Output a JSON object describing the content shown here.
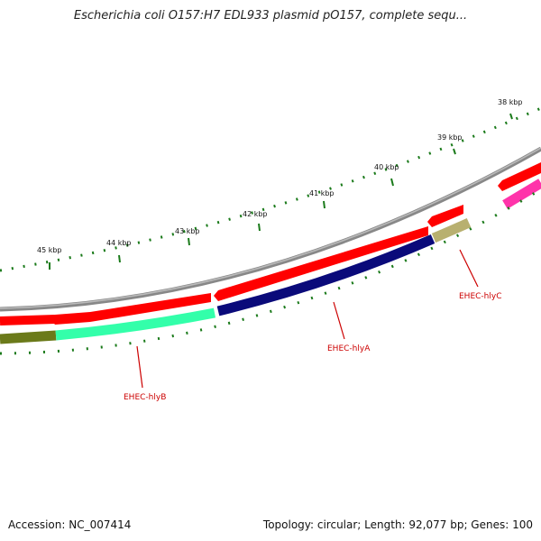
{
  "title": "Escherichia coli O157:H7 EDL933 plasmid pO157, complete sequ...",
  "footer": {
    "accession": "Accession: NC_007414",
    "summary": "Topology: circular; Length: 92,077 bp; Genes: 100"
  },
  "kbp_labels": [
    "38 kbp",
    "39 kbp",
    "40 kbp",
    "41 kbp",
    "42 kbp",
    "43 kbp",
    "44 kbp",
    "45 kbp"
  ],
  "genes": [
    {
      "name": "EHEC-hlyC",
      "color": "#b8b070"
    },
    {
      "name": "EHEC-hlyA",
      "color": "#0a0a7a"
    },
    {
      "name": "EHEC-hlyB",
      "color": "#33ffaa"
    }
  ],
  "colors": {
    "backbone": "#888888",
    "reverse_cds": "#ff0000",
    "gene_label": "#cc0000",
    "ticks": "#1a7a1a",
    "magenta_feature": "#ff33aa",
    "olive_feature": "#6b7a1a"
  }
}
